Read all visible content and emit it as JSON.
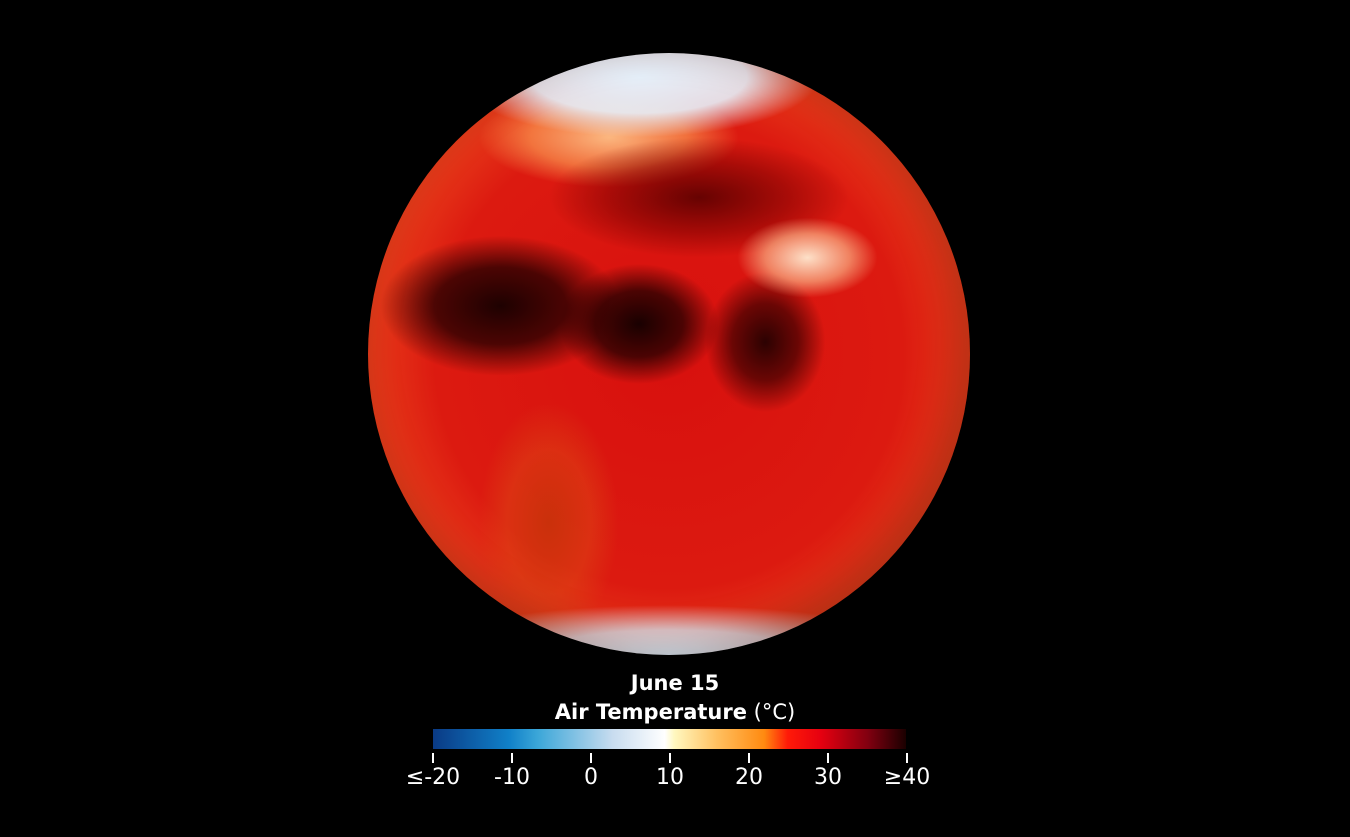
{
  "legend": {
    "date": "June 15",
    "title": "Air Temperature",
    "unit": "(°C)",
    "ticks": [
      "≤-20",
      "-10",
      "0",
      "10",
      "20",
      "30",
      "≥40"
    ],
    "range": [
      -20,
      40
    ],
    "colors": [
      "#0a3a85",
      "#3aa6d8",
      "#ffffff",
      "#ffc060",
      "#ff1a08",
      "#800010",
      "#1a0000"
    ]
  }
}
